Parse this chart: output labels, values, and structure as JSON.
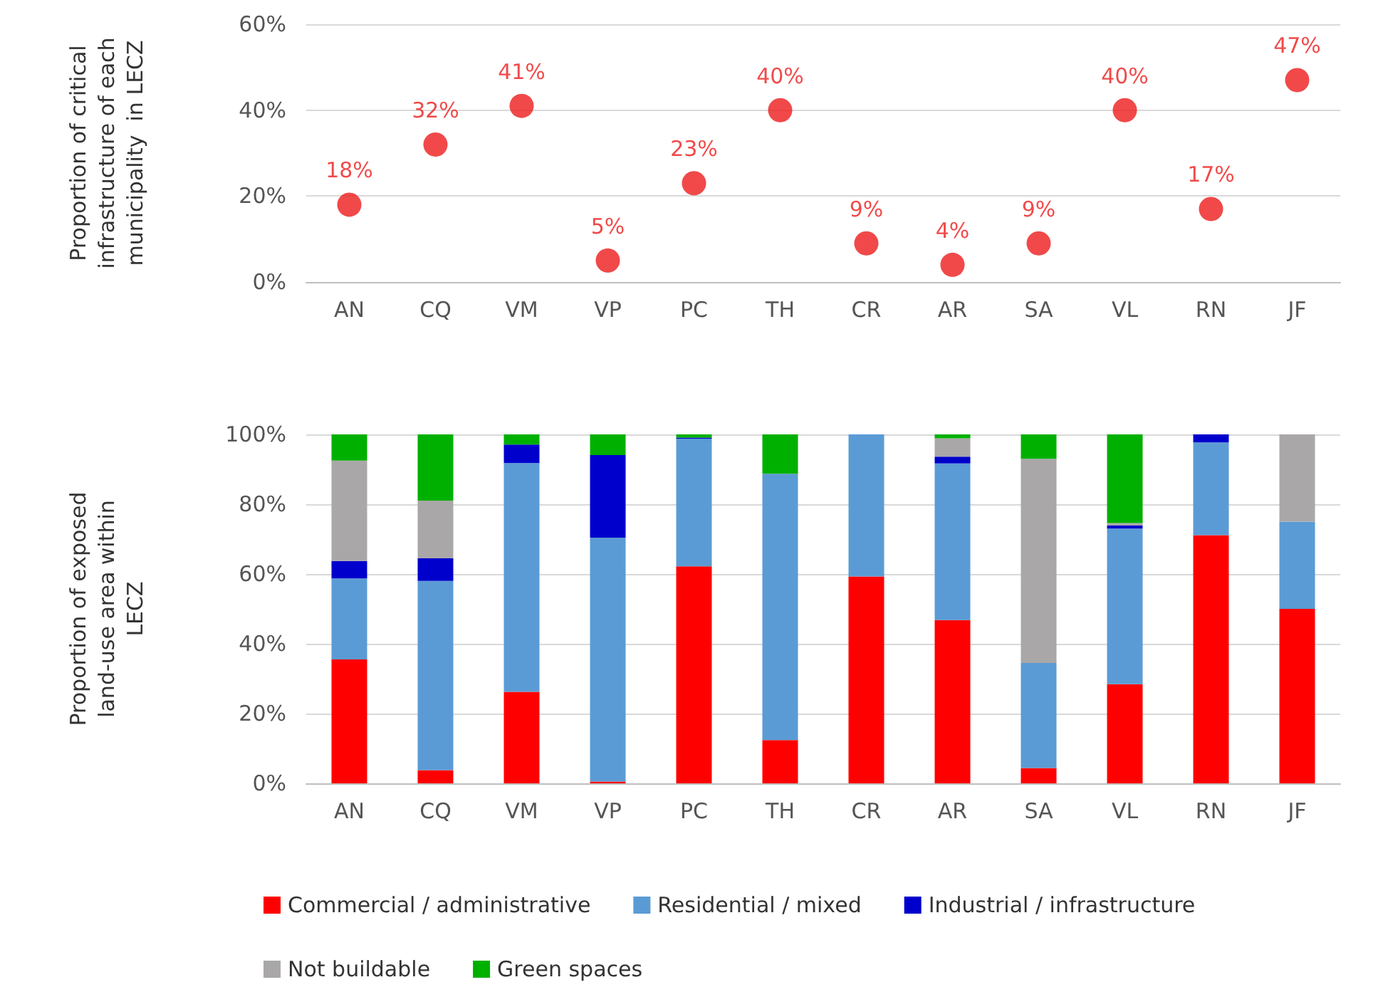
{
  "chart_data": [
    {
      "type": "scatter",
      "ylabel": "Proportion of critical infrastructure of each municipality  in LECZ",
      "categories": [
        "AN",
        "CQ",
        "VM",
        "VP",
        "PC",
        "TH",
        "CR",
        "AR",
        "SA",
        "VL",
        "RN",
        "JF"
      ],
      "values": [
        18,
        32,
        41,
        5,
        23,
        40,
        9,
        4,
        9,
        40,
        17,
        47
      ],
      "value_labels": [
        "18%",
        "32%",
        "41%",
        "5%",
        "23%",
        "40%",
        "9%",
        "4%",
        "9%",
        "40%",
        "17%",
        "47%"
      ],
      "color": "#ee1c1c",
      "marker": "circle",
      "ylim": [
        0,
        60
      ],
      "yticks": [
        {
          "value": 0,
          "label": "0%"
        },
        {
          "value": 20,
          "label": "20%"
        },
        {
          "value": 40,
          "label": "40%"
        },
        {
          "value": 60,
          "label": "60%"
        }
      ],
      "grid": "y",
      "legend": false
    },
    {
      "type": "bar",
      "stacked": true,
      "ylabel": "Proportion of exposed land-use area within LECZ",
      "categories": [
        "AN",
        "CQ",
        "VM",
        "VP",
        "PC",
        "TH",
        "CR",
        "AR",
        "SA",
        "VL",
        "RN",
        "JF"
      ],
      "series": [
        {
          "name": "Commercial / administrative",
          "color": "#ff0000",
          "values": [
            35.5,
            3.8,
            26.2,
            0.5,
            62.2,
            12.4,
            59.3,
            46.8,
            4.4,
            28.4,
            71.1,
            50
          ]
        },
        {
          "name": "Residential / mixed",
          "color": "#5b9bd5",
          "values": [
            23.2,
            54.2,
            65.6,
            69.9,
            36.6,
            76.3,
            40.7,
            44.9,
            30.1,
            44.6,
            26.6,
            25
          ]
        },
        {
          "name": "Industrial / infrastructure",
          "color": "#0000cc",
          "values": [
            5,
            6.5,
            5.3,
            23.7,
            0.3,
            0,
            0,
            1.9,
            0,
            0.9,
            2.3,
            0
          ]
        },
        {
          "name": "Not buildable",
          "color": "#a9a7a8",
          "values": [
            28.8,
            16.5,
            0,
            0,
            0,
            0,
            0,
            5.3,
            58.5,
            0.7,
            0,
            25
          ]
        },
        {
          "name": "Green spaces",
          "color": "#00b000",
          "values": [
            7.5,
            19,
            2.9,
            5.9,
            0.9,
            11.3,
            0,
            1.1,
            7,
            25.4,
            0,
            0
          ]
        }
      ],
      "ylim": [
        0,
        100
      ],
      "yticks": [
        {
          "value": 0,
          "label": "0%"
        },
        {
          "value": 20,
          "label": "20%"
        },
        {
          "value": 40,
          "label": "40%"
        },
        {
          "value": 60,
          "label": "60%"
        },
        {
          "value": 80,
          "label": "80%"
        },
        {
          "value": 100,
          "label": "100%"
        }
      ],
      "grid": "y",
      "legend": "bottom"
    }
  ]
}
